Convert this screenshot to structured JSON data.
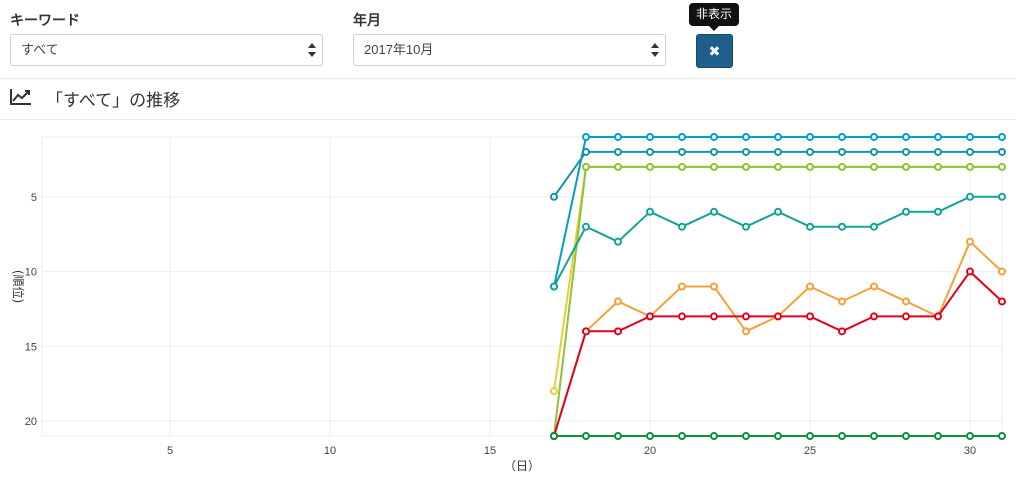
{
  "filters": {
    "keyword_label": "キーワード",
    "keyword_value": "すべて",
    "month_label": "年月",
    "month_value": "2017年10月",
    "hide_tooltip": "非表示",
    "hide_icon": "times-icon"
  },
  "panel": {
    "title": "「すべて」の推移",
    "icon": "line-chart-icon"
  },
  "chart_data": {
    "type": "line",
    "xlabel": "（日）",
    "ylabel": "(順位)",
    "xlim": [
      1,
      31
    ],
    "ylim": [
      21,
      1
    ],
    "y_reversed": true,
    "x_ticks": [
      5,
      10,
      15,
      20,
      25,
      30
    ],
    "y_ticks": [
      5,
      10,
      15,
      20
    ],
    "grid": true,
    "series": [
      {
        "color": "#00a0c6",
        "x": [
          17,
          18,
          19,
          20,
          21,
          22,
          23,
          24,
          25,
          26,
          27,
          28,
          29,
          30,
          31
        ],
        "values": [
          11,
          1,
          1,
          1,
          1,
          1,
          1,
          1,
          1,
          1,
          1,
          1,
          1,
          1,
          1
        ]
      },
      {
        "color": "#1891a8",
        "x": [
          17,
          18,
          19,
          20,
          21,
          22,
          23,
          24,
          25,
          26,
          27,
          28,
          29,
          30,
          31
        ],
        "values": [
          5,
          2,
          2,
          2,
          2,
          2,
          2,
          2,
          2,
          2,
          2,
          2,
          2,
          2,
          2
        ]
      },
      {
        "color": "#e5cf3a",
        "x": [
          17,
          18,
          19,
          20,
          21,
          22,
          23,
          24,
          25,
          26,
          27,
          28,
          29,
          30,
          31
        ],
        "values": [
          18,
          3,
          3,
          3,
          3,
          3,
          3,
          3,
          3,
          3,
          3,
          3,
          3,
          3,
          3
        ]
      },
      {
        "color": "#8fc33a",
        "x": [
          17,
          18,
          19,
          20,
          21,
          22,
          23,
          24,
          25,
          26,
          27,
          28,
          29,
          30,
          31
        ],
        "values": [
          21,
          3,
          3,
          3,
          3,
          3,
          3,
          3,
          3,
          3,
          3,
          3,
          3,
          3,
          3
        ]
      },
      {
        "color": "#14a39a",
        "x": [
          17,
          18,
          19,
          20,
          21,
          22,
          23,
          24,
          25,
          26,
          27,
          28,
          29,
          30,
          31
        ],
        "values": [
          11,
          7,
          8,
          6,
          7,
          6,
          7,
          6,
          7,
          7,
          7,
          6,
          6,
          5,
          5
        ]
      },
      {
        "color": "#f5a03c",
        "x": [
          17,
          18,
          19,
          20,
          21,
          22,
          23,
          24,
          25,
          26,
          27,
          28,
          29,
          30,
          31
        ],
        "values": [
          21,
          14,
          12,
          13,
          11,
          11,
          14,
          13,
          11,
          12,
          11,
          12,
          13,
          8,
          10
        ]
      },
      {
        "color": "#e3001b",
        "x": [
          17,
          18,
          19,
          20,
          21,
          22,
          23,
          24,
          25,
          26,
          27,
          28,
          29,
          30,
          31
        ],
        "values": [
          21,
          14,
          14,
          13,
          13,
          13,
          13,
          13,
          13,
          14,
          13,
          13,
          13,
          10,
          12
        ]
      },
      {
        "color": "#0a8f3c",
        "x": [
          17,
          18,
          19,
          20,
          21,
          22,
          23,
          24,
          25,
          26,
          27,
          28,
          29,
          30,
          31
        ],
        "values": [
          21,
          21,
          21,
          21,
          21,
          21,
          21,
          21,
          21,
          21,
          21,
          21,
          21,
          21,
          21
        ]
      }
    ]
  }
}
